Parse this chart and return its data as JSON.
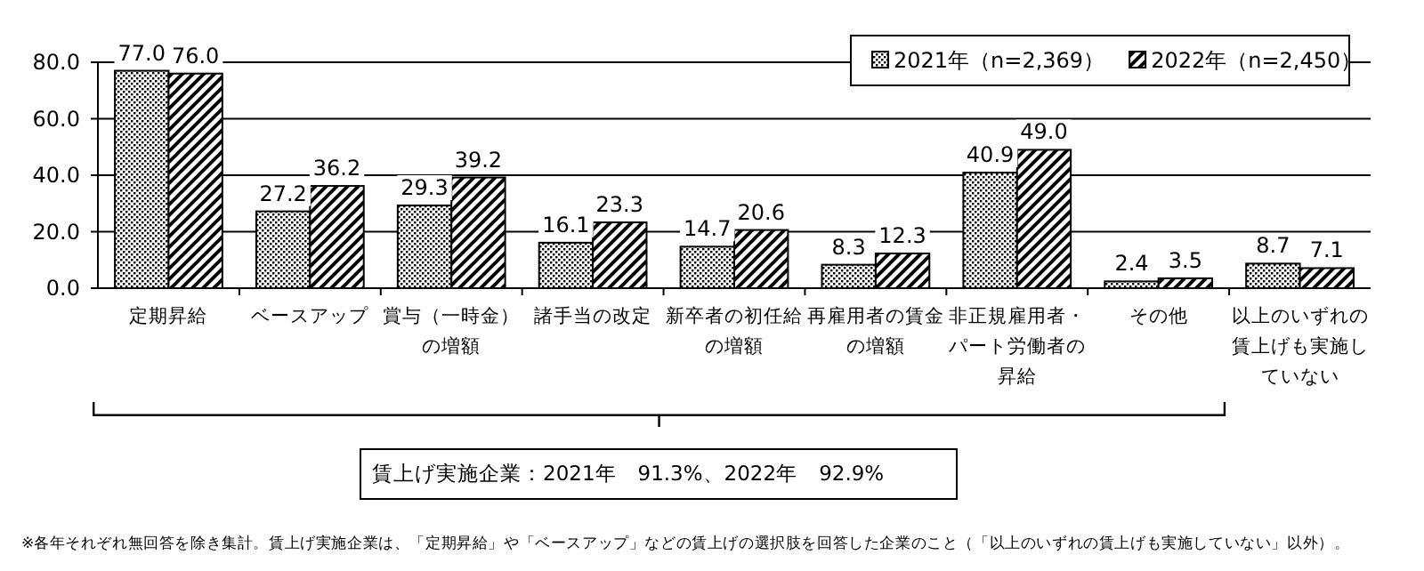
{
  "chart_data": {
    "type": "bar",
    "categories": [
      "定期昇給",
      "ベースアップ",
      "賞与（一時金）の増額",
      "諸手当の改定",
      "新卒者の初任給の増額",
      "再雇用者の賃金の増額",
      "非正規雇用者・パート労働者の昇給",
      "その他",
      "以上のいずれの賃上げも実施していない"
    ],
    "series": [
      {
        "name": "2021年（n=2,369）",
        "color": "#000000",
        "values": [
          77.0,
          27.2,
          29.3,
          16.1,
          14.7,
          8.3,
          40.9,
          2.4,
          8.7
        ],
        "value_labels": [
          "77.0",
          "27.2",
          "29.3",
          "16.1",
          "14.7",
          "8.3",
          "40.9",
          "2.4",
          "8.7"
        ]
      },
      {
        "name": "2022年（n=2,450）",
        "color": "#000000",
        "values": [
          76.0,
          36.2,
          39.2,
          23.3,
          20.6,
          12.3,
          49.0,
          3.5,
          7.1
        ],
        "value_labels": [
          "76.0",
          "36.2",
          "39.2",
          "23.3",
          "20.6",
          "12.3",
          "49.0",
          "3.5",
          "7.1"
        ]
      }
    ],
    "ylim": [
      0,
      80
    ],
    "yticks": [
      {
        "value": 0,
        "label": "0.0"
      },
      {
        "value": 20,
        "label": "20.0"
      },
      {
        "value": 40,
        "label": "40.0"
      },
      {
        "value": 60,
        "label": "60.0"
      },
      {
        "value": 80,
        "label": "80.0"
      }
    ],
    "grid": "y",
    "legend": "top right",
    "annotations": [
      "賃上げ実施企業：2021年　91.3%、2022年　92.9%",
      "※各年それぞれ無回答を除き集計。賃上げ実施企業は、「定期昇給」や「ベースアップ」などの賃上げの選択肢を回答した企業のこと（「以上のいずれの賃上げも実施していない」以外）。"
    ]
  }
}
